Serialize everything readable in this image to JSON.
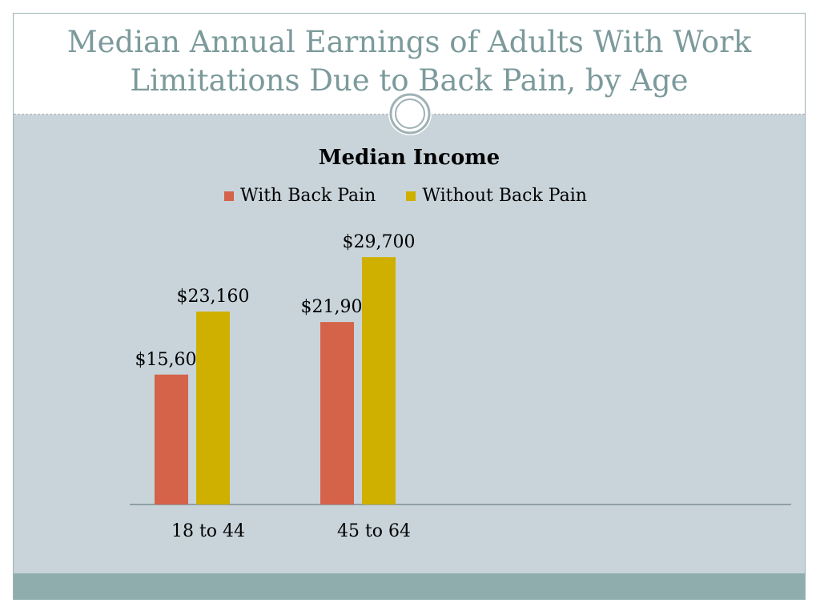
{
  "slide": {
    "title": "Median Annual Earnings of Adults With Work Limitations Due to Back Pain, by Age"
  },
  "chart_data": {
    "type": "bar",
    "title": "Median Income",
    "categories": [
      "18 to 44",
      "45 to 64"
    ],
    "series": [
      {
        "name": "With Back Pain",
        "values": [
          15600,
          21909
        ],
        "labels": [
          "$15,600",
          "$21,909"
        ]
      },
      {
        "name": "Without Back Pain",
        "values": [
          23160,
          29700
        ],
        "labels": [
          "$23,160",
          "$29,700"
        ]
      }
    ],
    "xlabel": "",
    "ylabel": "",
    "ylim": [
      0,
      30000
    ],
    "grid": false,
    "legend": "top-center"
  },
  "colors": {
    "title": "#7c9a9b",
    "background": "#c8d4da",
    "band": "#8fadad",
    "series": [
      "#d4634a",
      "#cfb000"
    ],
    "axis": "#8f9fa6"
  }
}
